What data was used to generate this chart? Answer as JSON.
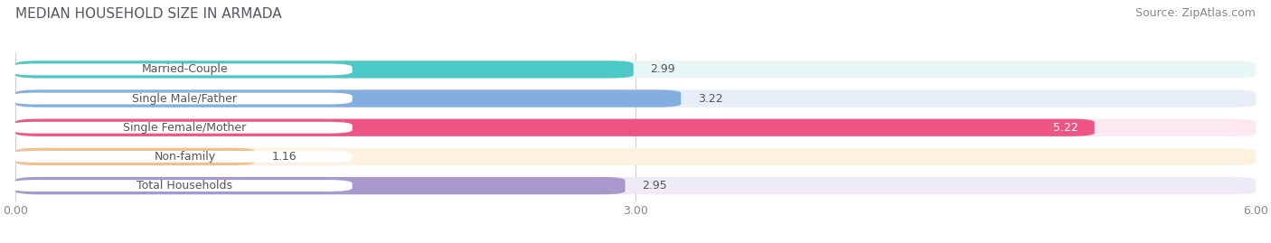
{
  "title": "MEDIAN HOUSEHOLD SIZE IN ARMADA",
  "source": "Source: ZipAtlas.com",
  "categories": [
    "Married-Couple",
    "Single Male/Father",
    "Single Female/Mother",
    "Non-family",
    "Total Households"
  ],
  "values": [
    2.99,
    3.22,
    5.22,
    1.16,
    2.95
  ],
  "bar_colors": [
    "#4dc8c8",
    "#85aee0",
    "#ee5585",
    "#f0c090",
    "#a898cc"
  ],
  "bar_bg_colors": [
    "#e8f6f6",
    "#e8eef8",
    "#fce8f0",
    "#fdf2e0",
    "#eeeaf8"
  ],
  "xlim": [
    0,
    6.0
  ],
  "xticks": [
    0.0,
    3.0,
    6.0
  ],
  "xtick_labels": [
    "0.00",
    "3.00",
    "6.00"
  ],
  "title_fontsize": 11,
  "source_fontsize": 9,
  "tick_fontsize": 9,
  "bar_label_fontsize": 9,
  "category_fontsize": 9,
  "background_color": "#ffffff",
  "text_color": "#555555",
  "title_color": "#555566"
}
